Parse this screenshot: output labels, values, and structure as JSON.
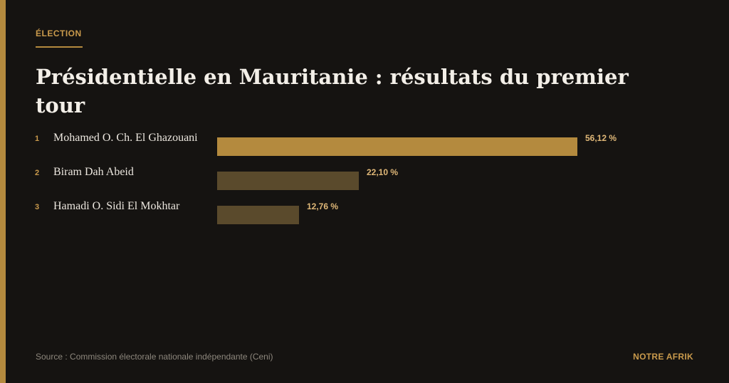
{
  "header": {
    "kicker": "ÉLECTION",
    "title": "Présidentielle en Mauritanie : résultats du premier tour"
  },
  "footer": {
    "source": "Source : Commission électorale nationale indépendante (Ceni)",
    "brand": "NOTRE AFRIK"
  },
  "colors": {
    "accent": "#b48a3e",
    "bar_primary": "#b48a3e",
    "bar_secondary": "#5a4a2c",
    "value_text": "#e0b878",
    "background": "#151311"
  },
  "chart_data": {
    "type": "bar",
    "orientation": "horizontal",
    "categories": [
      "Mohamed O. Ch. El Ghazouani",
      "Biram Dah Abeid",
      "Hamadi O. Sidi El Mokhtar"
    ],
    "ranks": [
      "1",
      "2",
      "3"
    ],
    "values": [
      56.12,
      22.1,
      12.76
    ],
    "value_labels": [
      "56,12 %",
      "22,10 %",
      "12,76 %"
    ],
    "unit": "%",
    "xlim": [
      0,
      56.12
    ],
    "grid": false,
    "legend": "none"
  }
}
